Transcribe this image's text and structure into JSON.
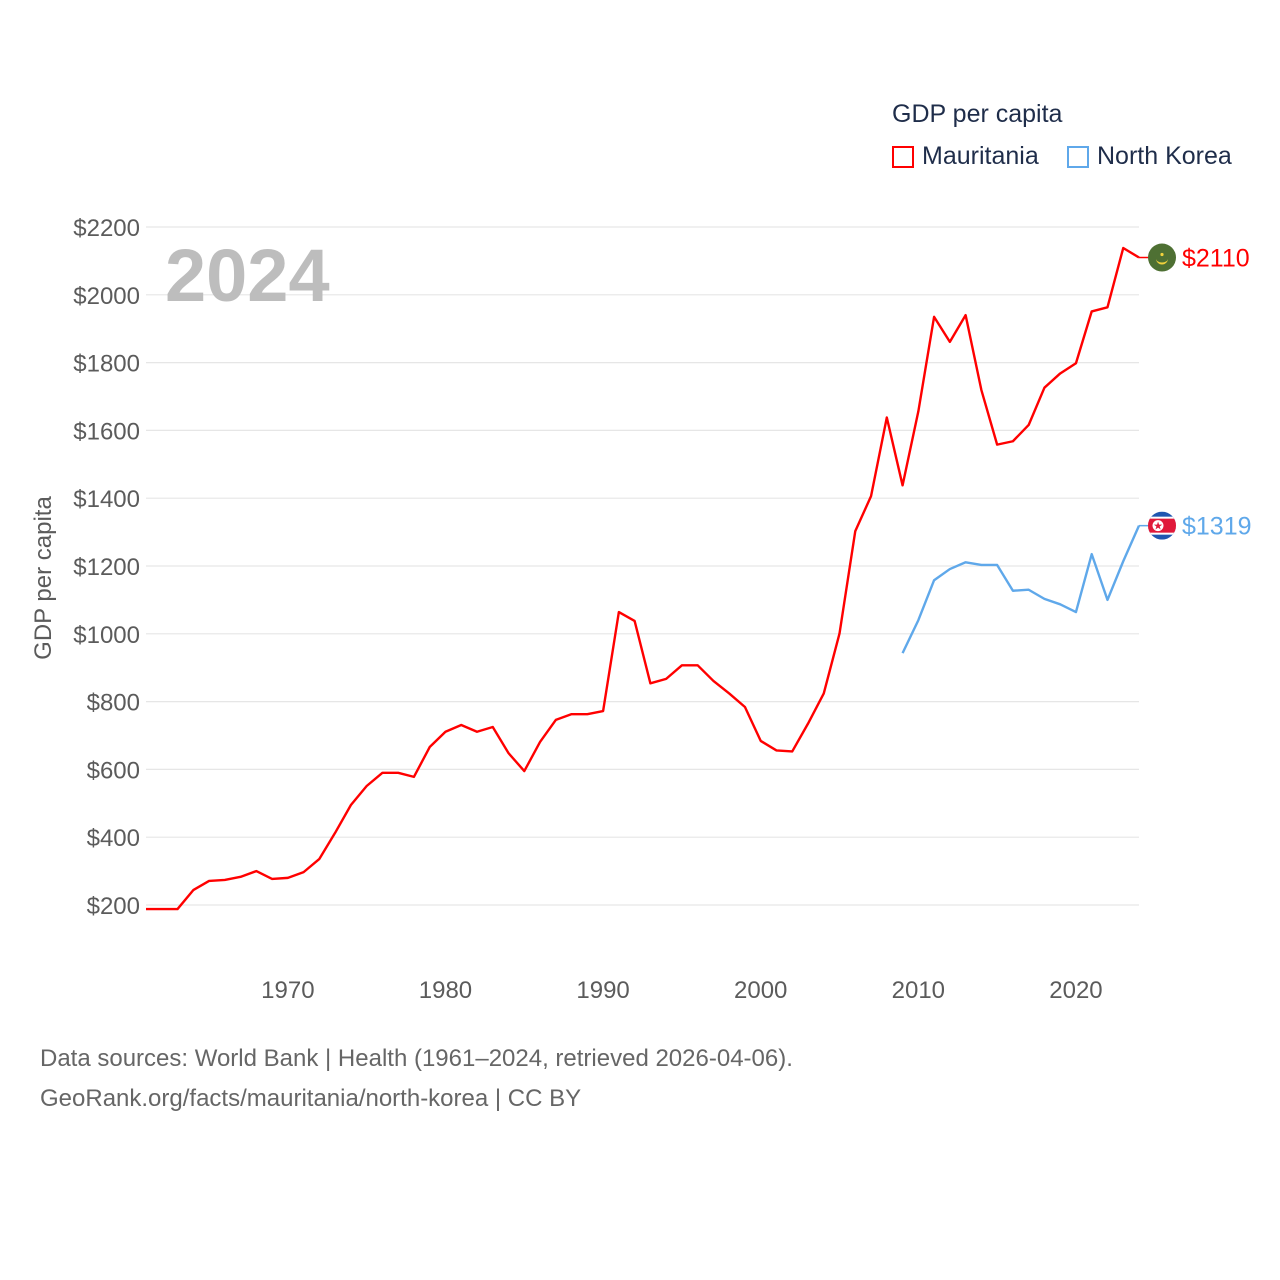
{
  "chart_data": {
    "type": "line",
    "title": "GDP per capita",
    "ylabel": "GDP per capita",
    "xlabel": "",
    "year_badge": "2024",
    "xlim": [
      1961,
      2024
    ],
    "ylim": [
      200,
      2200
    ],
    "x_ticks": [
      "1970",
      "1980",
      "1990",
      "2000",
      "2010",
      "2020"
    ],
    "y_ticks": [
      "$200",
      "$400",
      "$600",
      "$800",
      "$1000",
      "$1200",
      "$1400",
      "$1600",
      "$1800",
      "$2000",
      "$2200"
    ],
    "grid": true,
    "legend_position": "top-right",
    "series": [
      {
        "name": "Mauritania",
        "color": "#ff0000",
        "end_label": "$2110",
        "flag": "mauritania-flag",
        "start_year": 1961,
        "values": [
          188,
          188,
          188,
          244,
          271,
          274,
          283,
          300,
          277,
          280,
          297,
          336,
          413,
          495,
          551,
          590,
          590,
          578,
          666,
          711,
          731,
          711,
          725,
          648,
          595,
          681,
          746,
          763,
          763,
          772,
          1064,
          1038,
          854,
          867,
          907,
          907,
          861,
          824,
          784,
          684,
          656,
          653,
          735,
          824,
          1001,
          1303,
          1406,
          1638,
          1438,
          1656,
          1935,
          1861,
          1940,
          1719,
          1558,
          1568,
          1616,
          1726,
          1768,
          1798,
          1951,
          1963,
          2138,
          2110
        ]
      },
      {
        "name": "North Korea",
        "color": "#5fa8ea",
        "end_label": "$1319",
        "flag": "north-korea-flag",
        "start_year": 2009,
        "values": [
          943,
          1040,
          1158,
          1191,
          1211,
          1203,
          1203,
          1127,
          1130,
          1103,
          1087,
          1064,
          1235,
          1100,
          1214,
          1319
        ]
      }
    ]
  },
  "footer": {
    "sources": "Data sources: World Bank | Health (1961–2024, retrieved 2026-04-06).",
    "credit": "GeoRank.org/facts/mauritania/north-korea | CC BY"
  }
}
